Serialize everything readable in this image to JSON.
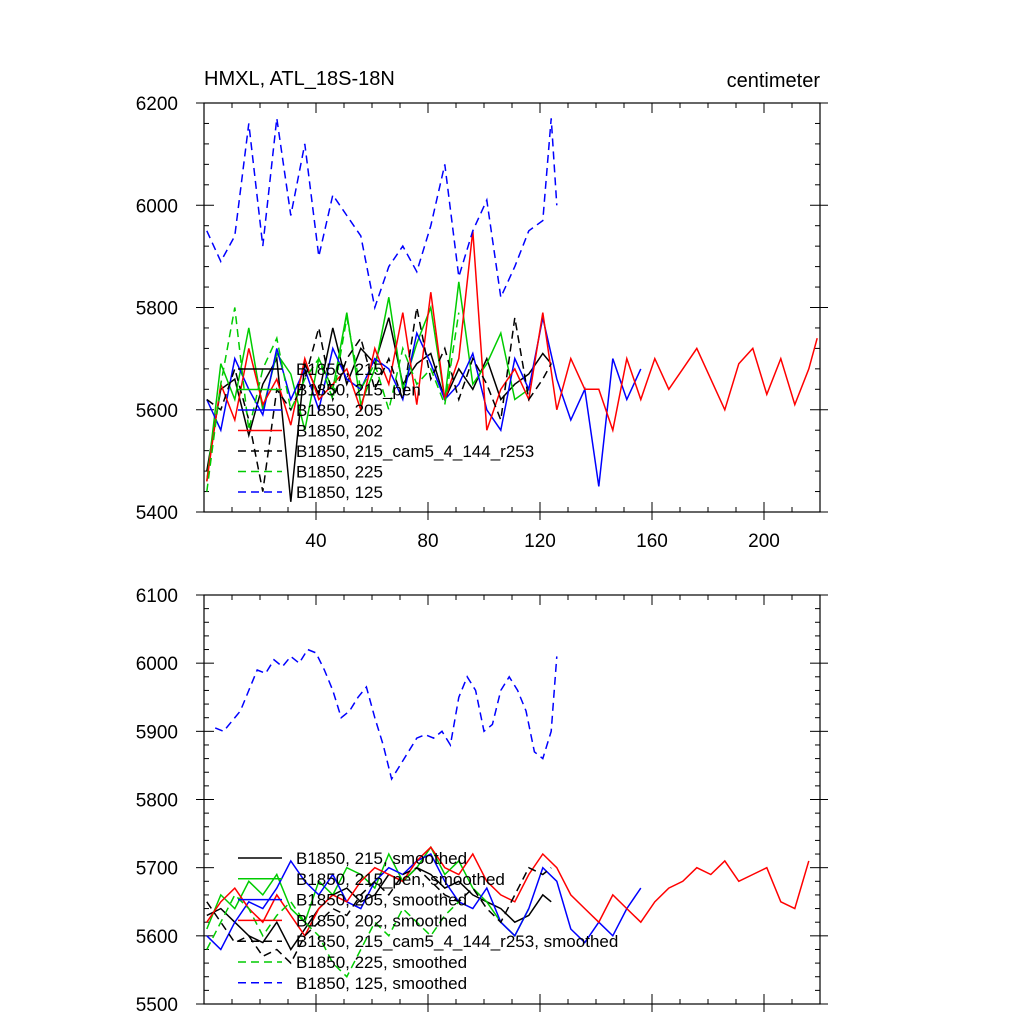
{
  "chart_data": [
    {
      "type": "line",
      "title": "HMXL, ATL_18S-18N",
      "units": "centimeter",
      "xlabel": "",
      "ylabel": "",
      "xlim": [
        0,
        220
      ],
      "ylim": [
        5400,
        6200
      ],
      "xticks": [
        40,
        80,
        120,
        160,
        200
      ],
      "xtick_labels": [
        "40",
        "80",
        "120",
        "160",
        "200"
      ],
      "yticks": [
        5400,
        5600,
        5800,
        6000,
        6200
      ],
      "ytick_labels": [
        "5400",
        "5600",
        "5800",
        "6000",
        "6200"
      ],
      "legend_position": "lower-left",
      "series": [
        {
          "name": "B1850, 215",
          "color": "#000000",
          "dash": "solid",
          "x": [
            1,
            6,
            11,
            16,
            21,
            26,
            31,
            36,
            41,
            46,
            51,
            56,
            61,
            66,
            71,
            76,
            81,
            86,
            91,
            96,
            101,
            106,
            111,
            116,
            121,
            124
          ],
          "y": [
            5480,
            5640,
            5660,
            5550,
            5650,
            5700,
            5420,
            5690,
            5630,
            5760,
            5650,
            5720,
            5690,
            5780,
            5650,
            5690,
            5710,
            5620,
            5680,
            5640,
            5700,
            5620,
            5650,
            5670,
            5710,
            5690
          ]
        },
        {
          "name": "B1850, 215_pen",
          "color": "#00cc00",
          "dash": "solid",
          "x": [
            1,
            6,
            11,
            16,
            21,
            26,
            31,
            36,
            41,
            46,
            51,
            56,
            61,
            66,
            71,
            76,
            81,
            86,
            91,
            96,
            101,
            106,
            111,
            116
          ],
          "y": [
            5460,
            5690,
            5620,
            5760,
            5600,
            5710,
            5670,
            5560,
            5700,
            5640,
            5790,
            5610,
            5680,
            5820,
            5640,
            5730,
            5800,
            5620,
            5850,
            5650,
            5690,
            5750,
            5620,
            5640
          ]
        },
        {
          "name": "B1850, 205",
          "color": "#0000ff",
          "dash": "solid",
          "x": [
            1,
            6,
            11,
            16,
            21,
            26,
            31,
            36,
            41,
            46,
            51,
            56,
            61,
            66,
            71,
            76,
            81,
            86,
            91,
            96,
            101,
            106,
            111,
            116,
            121,
            126,
            131,
            136,
            141,
            146,
            151,
            156
          ],
          "y": [
            5620,
            5560,
            5700,
            5640,
            5590,
            5720,
            5620,
            5680,
            5600,
            5720,
            5660,
            5640,
            5700,
            5680,
            5620,
            5750,
            5690,
            5620,
            5650,
            5710,
            5600,
            5560,
            5700,
            5640,
            5780,
            5660,
            5580,
            5640,
            5450,
            5700,
            5620,
            5680
          ]
        },
        {
          "name": "B1850, 202",
          "color": "#ff0000",
          "dash": "solid",
          "x": [
            1,
            6,
            11,
            16,
            21,
            26,
            31,
            36,
            41,
            46,
            51,
            56,
            61,
            66,
            71,
            76,
            81,
            86,
            91,
            96,
            101,
            106,
            111,
            116,
            121,
            126,
            131,
            136,
            141,
            146,
            151,
            156,
            161,
            166,
            171,
            176,
            181,
            186,
            191,
            196,
            201,
            206,
            211,
            216,
            219
          ],
          "y": [
            5460,
            5650,
            5580,
            5720,
            5610,
            5660,
            5570,
            5700,
            5620,
            5650,
            5680,
            5600,
            5720,
            5650,
            5790,
            5610,
            5830,
            5620,
            5700,
            5950,
            5560,
            5640,
            5680,
            5620,
            5790,
            5600,
            5700,
            5640,
            5640,
            5560,
            5700,
            5620,
            5700,
            5640,
            5680,
            5720,
            5660,
            5600,
            5690,
            5720,
            5630,
            5700,
            5610,
            5680,
            5740
          ]
        },
        {
          "name": "B1850, 215_cam5_4_144_r253",
          "color": "#000000",
          "dash": "dashed",
          "x": [
            1,
            6,
            11,
            16,
            21,
            26,
            31,
            36,
            41,
            46,
            51,
            56,
            61,
            66,
            71,
            76,
            81,
            86,
            91,
            96,
            101,
            106,
            111,
            116,
            121,
            124
          ],
          "y": [
            5620,
            5600,
            5680,
            5580,
            5440,
            5640,
            5600,
            5660,
            5760,
            5620,
            5700,
            5740,
            5640,
            5700,
            5620,
            5800,
            5660,
            5720,
            5620,
            5700,
            5650,
            5580,
            5780,
            5620,
            5660,
            5690
          ]
        },
        {
          "name": "B1850, 225",
          "color": "#00cc00",
          "dash": "dashed",
          "x": [
            1,
            6,
            11,
            16,
            21,
            26,
            31,
            36,
            41,
            46,
            51,
            56,
            61,
            66,
            71,
            76,
            81,
            86,
            91
          ],
          "y": [
            5440,
            5650,
            5800,
            5560,
            5680,
            5740,
            5600,
            5660,
            5700,
            5620,
            5780,
            5640,
            5690,
            5600,
            5720,
            5650,
            5680,
            5610,
            5790
          ]
        },
        {
          "name": "B1850, 125",
          "color": "#0000ff",
          "dash": "dashed",
          "x": [
            1,
            6,
            11,
            16,
            21,
            26,
            31,
            36,
            41,
            46,
            51,
            56,
            61,
            66,
            71,
            76,
            81,
            86,
            91,
            96,
            101,
            106,
            111,
            116,
            121,
            124,
            126
          ],
          "y": [
            5950,
            5890,
            5940,
            6160,
            5920,
            6170,
            5980,
            6120,
            5900,
            6020,
            5980,
            5940,
            5800,
            5880,
            5920,
            5870,
            5960,
            6080,
            5860,
            5950,
            6010,
            5820,
            5880,
            5950,
            5970,
            6170,
            6000
          ]
        }
      ],
      "legend": [
        "B1850, 215",
        "B1850, 215_pen",
        "B1850, 205",
        "B1850, 202",
        "B1850, 215_cam5_4_144_r253",
        "B1850, 225",
        "B1850, 125"
      ]
    },
    {
      "type": "line",
      "title": "",
      "xlabel": "",
      "ylabel": "",
      "xlim": [
        0,
        220
      ],
      "ylim": [
        5500,
        6100
      ],
      "xticks": [
        40,
        80,
        120,
        160,
        200
      ],
      "xtick_labels": [],
      "yticks": [
        5500,
        5600,
        5700,
        5800,
        5900,
        6000,
        6100
      ],
      "ytick_labels": [
        "5500",
        "5600",
        "5700",
        "5800",
        "5900",
        "6000",
        "6100"
      ],
      "legend_position": "lower-left",
      "series": [
        {
          "name": "B1850, 215, smoothed",
          "color": "#000000",
          "dash": "solid",
          "x": [
            1,
            6,
            11,
            16,
            21,
            26,
            31,
            36,
            41,
            46,
            51,
            56,
            61,
            66,
            71,
            76,
            81,
            86,
            91,
            96,
            101,
            106,
            111,
            116,
            121,
            124
          ],
          "y": [
            5630,
            5640,
            5620,
            5600,
            5590,
            5620,
            5580,
            5610,
            5640,
            5660,
            5670,
            5650,
            5660,
            5690,
            5680,
            5700,
            5690,
            5670,
            5680,
            5660,
            5650,
            5640,
            5620,
            5630,
            5660,
            5650
          ]
        },
        {
          "name": "B1850, 215_pen, smoothed",
          "color": "#00cc00",
          "dash": "solid",
          "x": [
            1,
            6,
            11,
            16,
            21,
            26,
            31,
            36,
            41,
            46,
            51,
            56,
            61,
            66,
            71,
            76,
            81,
            86,
            91,
            96,
            101,
            106,
            111,
            116
          ],
          "y": [
            5610,
            5660,
            5640,
            5680,
            5660,
            5690,
            5640,
            5620,
            5680,
            5660,
            5700,
            5690,
            5670,
            5720,
            5680,
            5700,
            5730,
            5690,
            5710,
            5670,
            5650,
            5620,
            5600,
            5640
          ]
        },
        {
          "name": "B1850, 205, smoothed",
          "color": "#0000ff",
          "dash": "solid",
          "x": [
            1,
            6,
            11,
            16,
            21,
            26,
            31,
            36,
            41,
            46,
            51,
            56,
            61,
            66,
            71,
            76,
            81,
            86,
            91,
            96,
            101,
            106,
            111,
            116,
            121,
            126,
            131,
            136,
            141,
            146,
            151,
            156
          ],
          "y": [
            5600,
            5580,
            5620,
            5650,
            5640,
            5670,
            5710,
            5680,
            5660,
            5690,
            5650,
            5640,
            5680,
            5700,
            5690,
            5710,
            5720,
            5680,
            5650,
            5640,
            5670,
            5620,
            5600,
            5640,
            5700,
            5680,
            5610,
            5590,
            5620,
            5600,
            5640,
            5670
          ]
        },
        {
          "name": "B1850, 202, smoothed",
          "color": "#ff0000",
          "dash": "solid",
          "x": [
            1,
            6,
            11,
            16,
            21,
            26,
            31,
            36,
            41,
            46,
            51,
            56,
            61,
            66,
            71,
            76,
            81,
            86,
            91,
            96,
            101,
            106,
            111,
            116,
            121,
            126,
            131,
            136,
            141,
            146,
            151,
            156,
            161,
            166,
            171,
            176,
            181,
            186,
            191,
            196,
            201,
            206,
            211,
            216
          ],
          "y": [
            5620,
            5650,
            5670,
            5640,
            5620,
            5660,
            5630,
            5600,
            5640,
            5660,
            5650,
            5680,
            5700,
            5690,
            5680,
            5710,
            5730,
            5700,
            5690,
            5720,
            5680,
            5660,
            5650,
            5690,
            5720,
            5700,
            5660,
            5640,
            5620,
            5660,
            5640,
            5620,
            5650,
            5670,
            5680,
            5700,
            5690,
            5710,
            5680,
            5690,
            5700,
            5650,
            5640,
            5710
          ]
        },
        {
          "name": "B1850, 215_cam5_4_144_r253, smoothed",
          "color": "#000000",
          "dash": "dashed",
          "x": [
            1,
            6,
            11,
            16,
            21,
            26,
            31,
            36,
            41,
            46,
            51,
            56,
            61,
            66,
            71,
            76,
            81,
            86,
            91,
            96,
            101,
            106,
            111,
            116,
            121,
            124
          ],
          "y": [
            5650,
            5620,
            5590,
            5600,
            5570,
            5580,
            5560,
            5600,
            5620,
            5640,
            5630,
            5660,
            5680,
            5660,
            5690,
            5700,
            5680,
            5660,
            5650,
            5670,
            5640,
            5620,
            5660,
            5700,
            5690,
            5700
          ]
        },
        {
          "name": "B1850, 225, smoothed",
          "color": "#00cc00",
          "dash": "dashed",
          "x": [
            1,
            6,
            11,
            16,
            21,
            26,
            31,
            36,
            41,
            46,
            51,
            56,
            61,
            66,
            71,
            76,
            81,
            86,
            91
          ],
          "y": [
            5580,
            5620,
            5660,
            5640,
            5600,
            5630,
            5650,
            5620,
            5600,
            5560,
            5540,
            5580,
            5620,
            5600,
            5640,
            5620,
            5600,
            5630,
            5650
          ]
        },
        {
          "name": "B1850, 125, smoothed",
          "color": "#0000ff",
          "dash": "dashed",
          "x": [
            4,
            7,
            10,
            13,
            16,
            19,
            22,
            25,
            28,
            31,
            34,
            37,
            40,
            43,
            46,
            49,
            52,
            55,
            58,
            61,
            64,
            67,
            70,
            73,
            76,
            79,
            82,
            85,
            88,
            91,
            94,
            97,
            100,
            103,
            106,
            109,
            112,
            115,
            118,
            121,
            124,
            126
          ],
          "y": [
            5905,
            5900,
            5915,
            5930,
            5960,
            5990,
            5985,
            6005,
            5995,
            6010,
            6000,
            6020,
            6015,
            5990,
            5960,
            5920,
            5930,
            5950,
            5965,
            5920,
            5880,
            5830,
            5850,
            5870,
            5890,
            5895,
            5890,
            5900,
            5880,
            5950,
            5980,
            5960,
            5900,
            5910,
            5960,
            5980,
            5960,
            5930,
            5870,
            5860,
            5900,
            6010
          ]
        }
      ],
      "legend": [
        "B1850, 215, smoothed",
        "B1850, 215_pen, smoothed",
        "B1850, 205, smoothed",
        "B1850, 202, smoothed",
        "B1850, 215_cam5_4_144_r253, smoothed",
        "B1850, 225, smoothed",
        "B1850, 125, smoothed"
      ]
    }
  ]
}
